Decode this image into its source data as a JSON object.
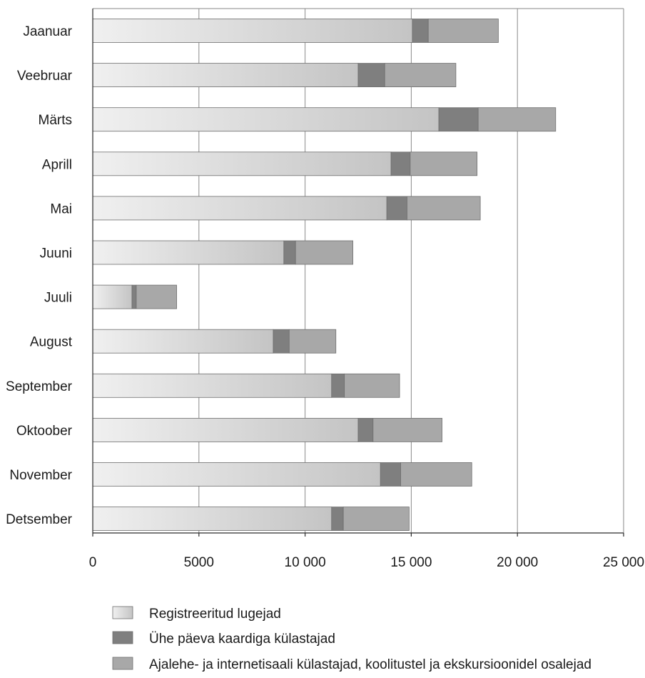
{
  "chart_data": {
    "type": "bar",
    "orientation": "horizontal",
    "stacked": true,
    "categories": [
      "Jaanuar",
      "Veebruar",
      "Märts",
      "Aprill",
      "Mai",
      "Juuni",
      "Juuli",
      "August",
      "September",
      "Oktoober",
      "November",
      "Detsember"
    ],
    "series": [
      {
        "name": "Registreeritud lugejad",
        "color": "#d8d8d8",
        "values": [
          15050,
          12500,
          16300,
          14050,
          13850,
          9000,
          1850,
          8500,
          11250,
          12500,
          13550,
          11250
        ]
      },
      {
        "name": "Ühe päeva kaardiga külastajad",
        "color": "#7f7f7f",
        "values": [
          750,
          1250,
          1850,
          900,
          950,
          550,
          200,
          750,
          600,
          700,
          950,
          550
        ]
      },
      {
        "name": "Ajalehe- ja internetisaali külastajad, koolitustel ja ekskursioonidel osalejad",
        "color": "#a8a8a8",
        "values": [
          3300,
          3350,
          3650,
          3150,
          3450,
          2700,
          1900,
          2200,
          2600,
          3250,
          3350,
          3100
        ]
      }
    ],
    "xlim": [
      0,
      25000
    ],
    "x_ticks": [
      0,
      5000,
      10000,
      15000,
      20000,
      25000
    ],
    "x_tick_labels": [
      "0",
      "5000",
      "10 000",
      "15 000",
      "20 000",
      "25 000"
    ],
    "grid": "vertical",
    "legend_position": "bottom",
    "title": "",
    "xlabel": "",
    "ylabel": ""
  }
}
